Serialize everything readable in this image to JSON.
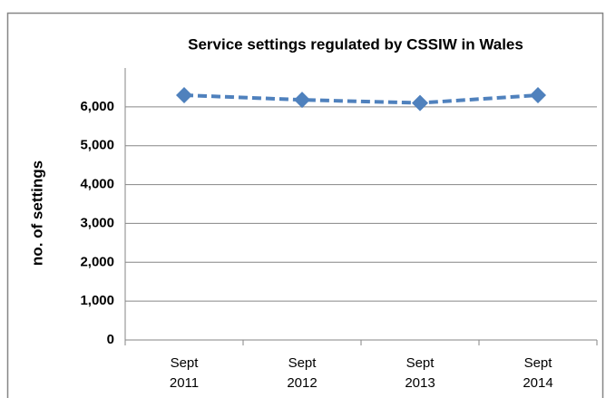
{
  "chart_data": {
    "type": "line",
    "title": "Service settings regulated by CSSIW in Wales",
    "y_label": "no. of settings",
    "categories": [
      "Sept 2011",
      "Sept 2012",
      "Sept 2013",
      "Sept 2014"
    ],
    "series": [
      {
        "name": "Service settings",
        "color": "#4f81bd",
        "values": [
          6300,
          6180,
          6100,
          6300
        ]
      }
    ],
    "ylim": [
      0,
      7000
    ],
    "yticks": [
      0,
      {
        "value": 1000,
        "label": "1,000"
      },
      {
        "value": 2000,
        "label": "2,000"
      },
      {
        "value": 3000,
        "label": "3,000"
      },
      {
        "value": 4000,
        "label": "4,000"
      },
      {
        "value": 5000,
        "label": "5,000"
      },
      {
        "value": 6000,
        "label": "6,000"
      }
    ],
    "grid": true
  }
}
